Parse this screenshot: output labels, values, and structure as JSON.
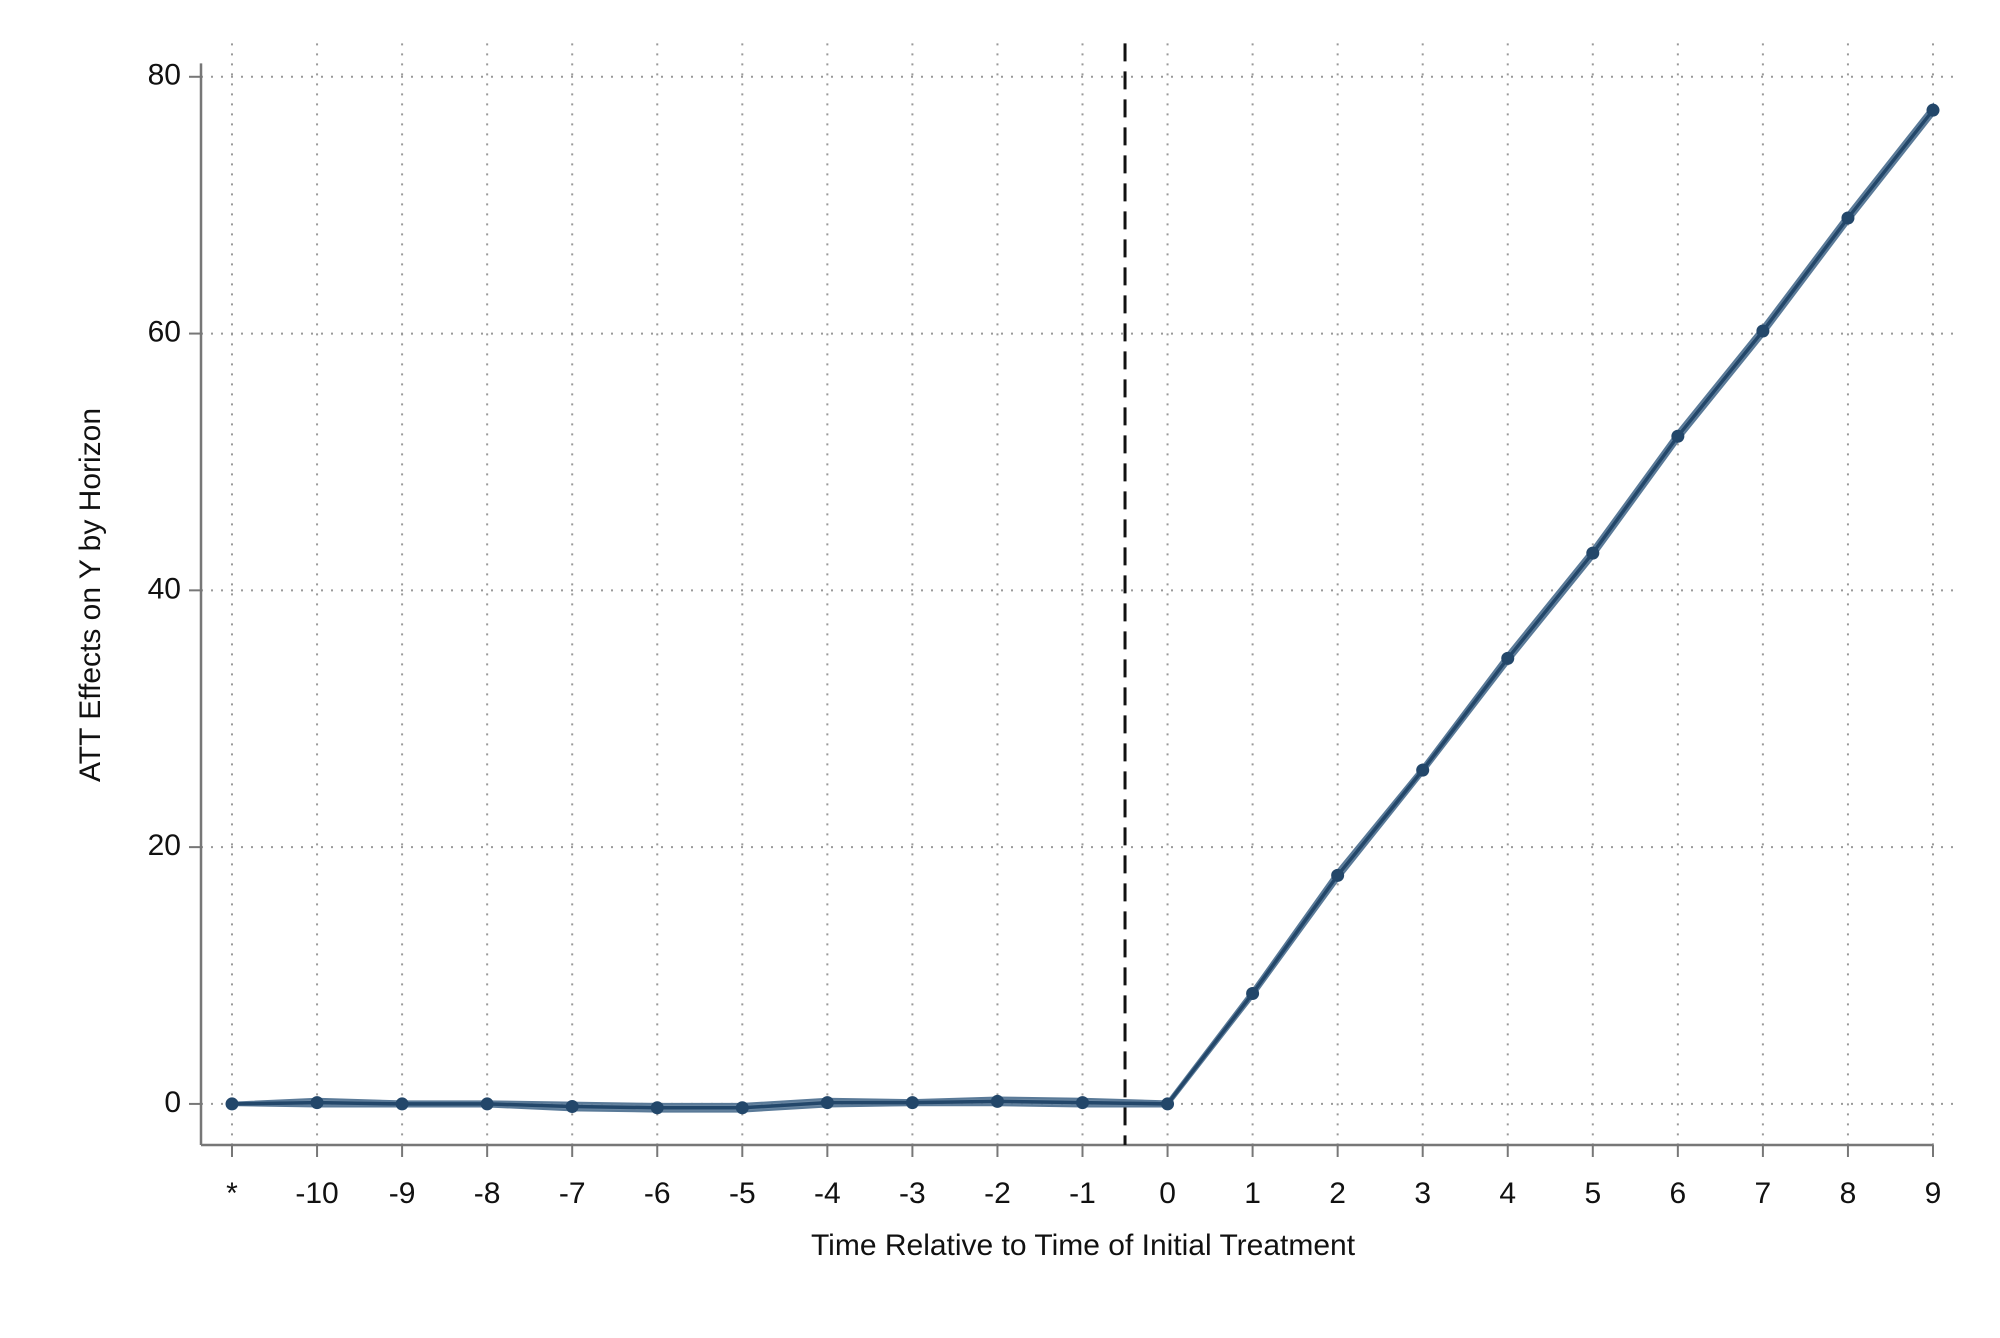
{
  "chart_data": {
    "type": "line",
    "x_label": "Time Relative to Time of Initial Treatment",
    "y_label": "ATT Effects on Y by Horizon",
    "categories": [
      "*",
      "-10",
      "-9",
      "-8",
      "-7",
      "-6",
      "-5",
      "-4",
      "-3",
      "-2",
      "-1",
      "0",
      "1",
      "2",
      "3",
      "4",
      "5",
      "6",
      "7",
      "8",
      "9"
    ],
    "series": [
      {
        "color": "#23476a",
        "values": [
          0,
          0.1,
          0,
          0,
          -0.2,
          -0.3,
          -0.3,
          0.1,
          0.1,
          0.2,
          0.1,
          0,
          8.6,
          17.8,
          26,
          34.7,
          42.9,
          52,
          60.2,
          69,
          77.4
        ],
        "band_color": "#5a7a98",
        "lower": [
          -0.1,
          -0.2,
          -0.2,
          -0.2,
          -0.5,
          -0.6,
          -0.6,
          -0.2,
          -0.1,
          -0.1,
          -0.2,
          -0.2,
          8.3,
          17.4,
          25.7,
          34.3,
          42.5,
          51.6,
          59.8,
          68.6,
          77.0
        ],
        "upper": [
          0.1,
          0.4,
          0.2,
          0.2,
          0.1,
          0,
          0,
          0.4,
          0.3,
          0.5,
          0.4,
          0.2,
          8.9,
          18.2,
          26.3,
          35.1,
          43.3,
          52.4,
          60.6,
          69.4,
          77.8
        ]
      }
    ],
    "ylim": [
      -3.2,
      82.6
    ],
    "yticks": [
      0,
      20,
      40,
      60,
      80
    ],
    "grid": true,
    "vline": {
      "between": [
        "-1",
        "0"
      ],
      "style": "dashed"
    }
  }
}
